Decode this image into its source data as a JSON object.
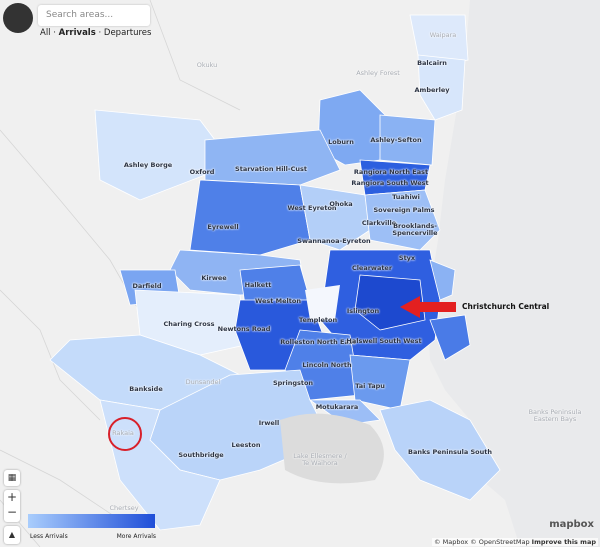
{
  "search": {
    "placeholder": "Search areas..."
  },
  "tabs": [
    {
      "label": "All",
      "active": false
    },
    {
      "label": "Arrivals",
      "active": true
    },
    {
      "label": "Departures",
      "active": false
    }
  ],
  "map": {
    "labels": [
      {
        "text": "Waipara",
        "muted": true
      },
      {
        "text": "Balcairn",
        "muted": false
      },
      {
        "text": "Amberley",
        "muted": false
      },
      {
        "text": "Okuku",
        "muted": true
      },
      {
        "text": "Ashley Forest",
        "muted": true
      },
      {
        "text": "Loburn",
        "muted": false
      },
      {
        "text": "Ashley-Sefton",
        "muted": false
      },
      {
        "text": "Rangiora North East",
        "muted": false
      },
      {
        "text": "Rangiora South West",
        "muted": false
      },
      {
        "text": "Ashley Borge",
        "muted": false
      },
      {
        "text": "Oxford",
        "muted": false
      },
      {
        "text": "Starvation Hill-Cust",
        "muted": false
      },
      {
        "text": "Tuahiwi",
        "muted": false
      },
      {
        "text": "Sovereign Palms",
        "muted": false
      },
      {
        "text": "West Eyreton",
        "muted": false
      },
      {
        "text": "Ohoka",
        "muted": false
      },
      {
        "text": "Clarkville",
        "muted": false
      },
      {
        "text": "Brooklands-Spencerville",
        "muted": false
      },
      {
        "text": "Eyrewell",
        "muted": false
      },
      {
        "text": "Swannanoa-Eyreton",
        "muted": false
      },
      {
        "text": "Styx",
        "muted": false
      },
      {
        "text": "Clearwater",
        "muted": false
      },
      {
        "text": "Kirwee",
        "muted": false
      },
      {
        "text": "Halkett",
        "muted": false
      },
      {
        "text": "Darfield",
        "muted": false
      },
      {
        "text": "West Melton",
        "muted": false
      },
      {
        "text": "Islington",
        "muted": false
      },
      {
        "text": "Charing Cross",
        "muted": false
      },
      {
        "text": "Newtons Road",
        "muted": false
      },
      {
        "text": "Templeton",
        "muted": false
      },
      {
        "text": "Rolleston North East",
        "muted": false
      },
      {
        "text": "Halswell South West",
        "muted": false
      },
      {
        "text": "Lincoln North",
        "muted": false
      },
      {
        "text": "Springston",
        "muted": false
      },
      {
        "text": "Tai Tapu",
        "muted": false
      },
      {
        "text": "Bankside",
        "muted": false
      },
      {
        "text": "Dunsandel",
        "muted": true
      },
      {
        "text": "Motukarara",
        "muted": false
      },
      {
        "text": "Banks Peninsula Eastern Bays",
        "muted": true
      },
      {
        "text": "Irwell",
        "muted": false
      },
      {
        "text": "Rakaia",
        "muted": true
      },
      {
        "text": "Leeston",
        "muted": false
      },
      {
        "text": "Southbridge",
        "muted": false
      },
      {
        "text": "Lake Ellesmere / Te Waihora",
        "muted": true
      },
      {
        "text": "Banks Peninsula South",
        "muted": false
      },
      {
        "text": "Chertsey",
        "muted": true
      }
    ],
    "annotation": "Christchurch Central"
  },
  "controls": {
    "zoom_in": "+",
    "zoom_out": "−"
  },
  "legend": {
    "low": "Less Arrivals",
    "high": "More Arrivals"
  },
  "logo": "mapbox",
  "attribution": [
    "© Mapbox",
    "© OpenStreetMap",
    "Improve this map"
  ]
}
